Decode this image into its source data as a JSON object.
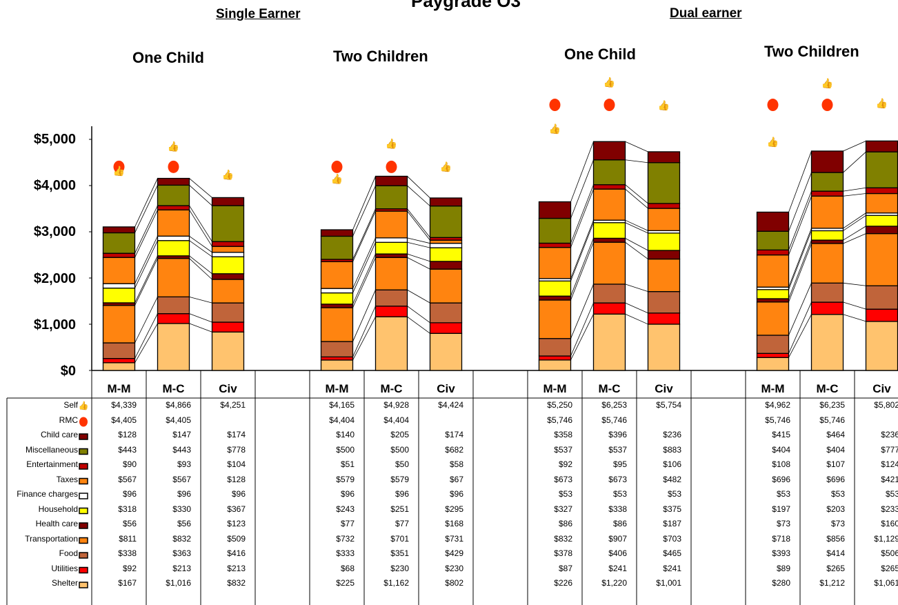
{
  "title": "Paygrade O3",
  "group_labels": [
    "Single Earner",
    "Dual earner"
  ],
  "colors": {
    "Shelter": "#FFC36E",
    "Utilities": "#FF0000",
    "Food": "#C0643A",
    "Transportation": "#FF8410",
    "Health care": "#800000",
    "Household": "#FFFF00",
    "Finance charges": "#FFFFFF",
    "Taxes": "#FF8410",
    "Entertainment": "#C00000",
    "Miscellaneous": "#808000",
    "Child care": "#800000",
    "rmc_marker": "#FF3300",
    "self_marker": "#5B9BD5"
  },
  "chart_data": {
    "type": "bar",
    "stacked": true,
    "title": "Paygrade O3",
    "ylim": [
      0,
      5000
    ],
    "yticks": [
      "$0",
      "$1,000",
      "$2,000",
      "$3,000",
      "$4,000",
      "$5,000"
    ],
    "categories": [
      "M-M",
      "M-C",
      "Civ"
    ],
    "scenarios": [
      {
        "group": "Single Earner",
        "label": "One Child"
      },
      {
        "group": "Single Earner",
        "label": "Two Children"
      },
      {
        "group": "Dual earner",
        "label": "One Child"
      },
      {
        "group": "Dual earner",
        "label": "Two Children"
      }
    ],
    "series": [
      {
        "name": "Shelter",
        "values": [
          [
            167,
            1016,
            832
          ],
          [
            225,
            1162,
            802
          ],
          [
            226,
            1220,
            1001
          ],
          [
            280,
            1212,
            1061
          ]
        ]
      },
      {
        "name": "Utilities",
        "values": [
          [
            92,
            213,
            213
          ],
          [
            68,
            230,
            230
          ],
          [
            87,
            241,
            241
          ],
          [
            89,
            265,
            265
          ]
        ]
      },
      {
        "name": "Food",
        "values": [
          [
            338,
            363,
            416
          ],
          [
            333,
            351,
            429
          ],
          [
            378,
            406,
            465
          ],
          [
            393,
            414,
            506
          ]
        ]
      },
      {
        "name": "Transportation",
        "values": [
          [
            811,
            832,
            509
          ],
          [
            732,
            701,
            731
          ],
          [
            832,
            907,
            703
          ],
          [
            718,
            856,
            1129
          ]
        ]
      },
      {
        "name": "Health care",
        "values": [
          [
            56,
            56,
            123
          ],
          [
            77,
            77,
            168
          ],
          [
            86,
            86,
            187
          ],
          [
            73,
            73,
            160
          ]
        ]
      },
      {
        "name": "Household",
        "values": [
          [
            318,
            330,
            367
          ],
          [
            243,
            251,
            295
          ],
          [
            327,
            338,
            375
          ],
          [
            197,
            203,
            233
          ]
        ]
      },
      {
        "name": "Finance charges",
        "values": [
          [
            96,
            96,
            96
          ],
          [
            96,
            96,
            96
          ],
          [
            53,
            53,
            53
          ],
          [
            53,
            53,
            53
          ]
        ]
      },
      {
        "name": "Taxes",
        "values": [
          [
            567,
            567,
            128
          ],
          [
            579,
            579,
            67
          ],
          [
            673,
            673,
            482
          ],
          [
            696,
            696,
            421
          ]
        ]
      },
      {
        "name": "Entertainment",
        "values": [
          [
            90,
            93,
            104
          ],
          [
            51,
            50,
            58
          ],
          [
            92,
            95,
            106
          ],
          [
            108,
            107,
            124
          ]
        ]
      },
      {
        "name": "Miscellaneous",
        "values": [
          [
            443,
            443,
            778
          ],
          [
            500,
            500,
            682
          ],
          [
            537,
            537,
            883
          ],
          [
            404,
            404,
            777
          ]
        ]
      },
      {
        "name": "Child care",
        "values": [
          [
            128,
            147,
            174
          ],
          [
            140,
            205,
            174
          ],
          [
            358,
            396,
            236
          ],
          [
            415,
            464,
            236
          ]
        ]
      }
    ],
    "markers": [
      {
        "name": "Self",
        "values": [
          [
            4339,
            4866,
            4251
          ],
          [
            4165,
            4928,
            4424
          ],
          [
            5250,
            6253,
            5754
          ],
          [
            4962,
            6235,
            5802
          ]
        ]
      },
      {
        "name": "RMC",
        "values": [
          [
            4405,
            4405,
            null
          ],
          [
            4404,
            4404,
            null
          ],
          [
            5746,
            5746,
            null
          ],
          [
            5746,
            5746,
            null
          ]
        ]
      }
    ]
  },
  "table": {
    "row_labels": [
      "Self",
      "RMC",
      "Child care",
      "Miscellaneous",
      "Entertainment",
      "Taxes",
      "Finance charges",
      "Household",
      "Health care",
      "Transportation",
      "Food",
      "Utilities",
      "Shelter"
    ],
    "rows": [
      [
        "$4,339",
        "$4,866",
        "$4,251",
        "$4,165",
        "$4,928",
        "$4,424",
        "$5,250",
        "$6,253",
        "$5,754",
        "$4,962",
        "$6,235",
        "$5,802"
      ],
      [
        "$4,405",
        "$4,405",
        "",
        "$4,404",
        "$4,404",
        "",
        "$5,746",
        "$5,746",
        "",
        "$5,746",
        "$5,746",
        ""
      ],
      [
        "$128",
        "$147",
        "$174",
        "$140",
        "$205",
        "$174",
        "$358",
        "$396",
        "$236",
        "$415",
        "$464",
        "$236"
      ],
      [
        "$443",
        "$443",
        "$778",
        "$500",
        "$500",
        "$682",
        "$537",
        "$537",
        "$883",
        "$404",
        "$404",
        "$777"
      ],
      [
        "$90",
        "$93",
        "$104",
        "$51",
        "$50",
        "$58",
        "$92",
        "$95",
        "$106",
        "$108",
        "$107",
        "$124"
      ],
      [
        "$567",
        "$567",
        "$128",
        "$579",
        "$579",
        "$67",
        "$673",
        "$673",
        "$482",
        "$696",
        "$696",
        "$421"
      ],
      [
        "$96",
        "$96",
        "$96",
        "$96",
        "$96",
        "$96",
        "$53",
        "$53",
        "$53",
        "$53",
        "$53",
        "$53"
      ],
      [
        "$318",
        "$330",
        "$367",
        "$243",
        "$251",
        "$295",
        "$327",
        "$338",
        "$375",
        "$197",
        "$203",
        "$233"
      ],
      [
        "$56",
        "$56",
        "$123",
        "$77",
        "$77",
        "$168",
        "$86",
        "$86",
        "$187",
        "$73",
        "$73",
        "$160"
      ],
      [
        "$811",
        "$832",
        "$509",
        "$732",
        "$701",
        "$731",
        "$832",
        "$907",
        "$703",
        "$718",
        "$856",
        "$1,129"
      ],
      [
        "$338",
        "$363",
        "$416",
        "$333",
        "$351",
        "$429",
        "$378",
        "$406",
        "$465",
        "$393",
        "$414",
        "$506"
      ],
      [
        "$92",
        "$213",
        "$213",
        "$68",
        "$230",
        "$230",
        "$87",
        "$241",
        "$241",
        "$89",
        "$265",
        "$265"
      ],
      [
        "$167",
        "$1,016",
        "$832",
        "$225",
        "$1,162",
        "$802",
        "$226",
        "$1,220",
        "$1,001",
        "$280",
        "$1,212",
        "$1,061"
      ]
    ]
  }
}
